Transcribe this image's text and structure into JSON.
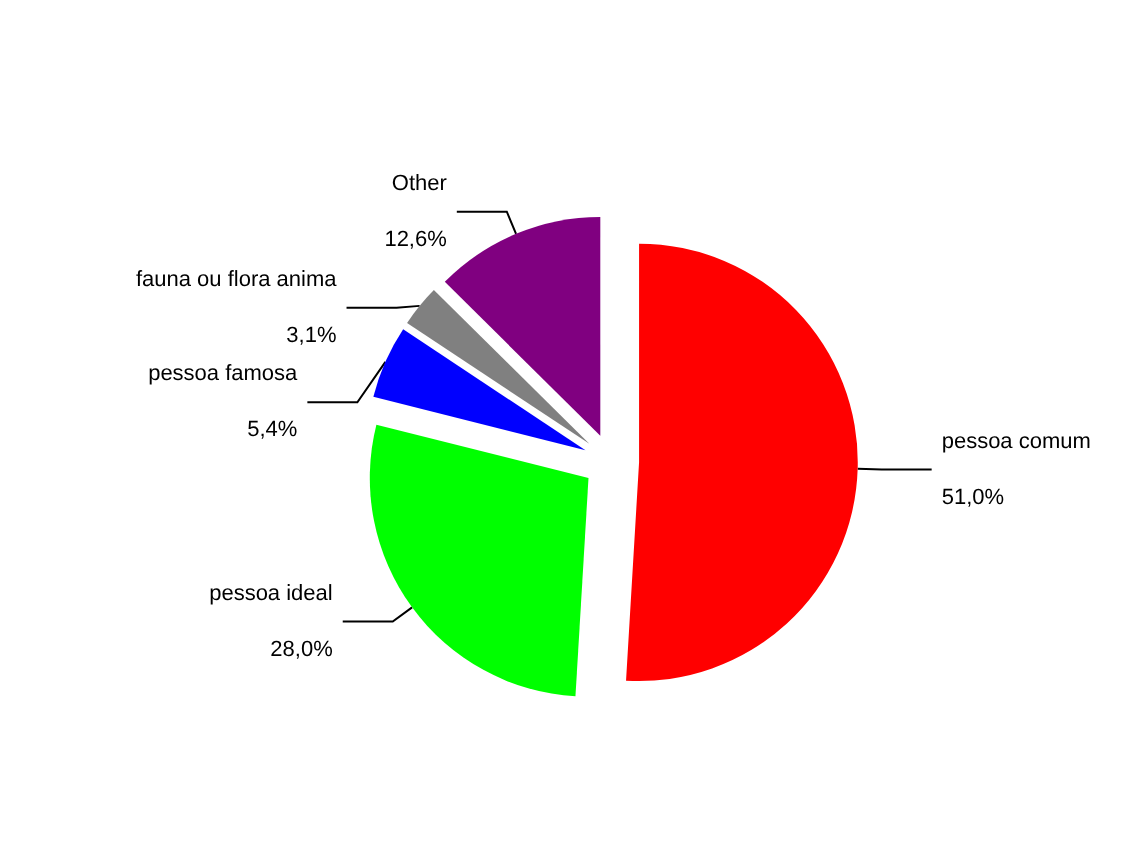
{
  "chart_data": {
    "type": "pie",
    "categories": [
      "pessoa comum",
      "pessoa ideal",
      "pessoa famosa",
      "fauna ou flora anima",
      "Other"
    ],
    "values": [
      51.0,
      28.0,
      5.4,
      3.1,
      12.6
    ],
    "value_labels": [
      "51,0%",
      "28,0%",
      "5,4%",
      "3,1%",
      "12,6%"
    ],
    "colors": [
      "#ff0000",
      "#00ff00",
      "#0000ff",
      "#808080",
      "#800080"
    ],
    "legend": false
  }
}
